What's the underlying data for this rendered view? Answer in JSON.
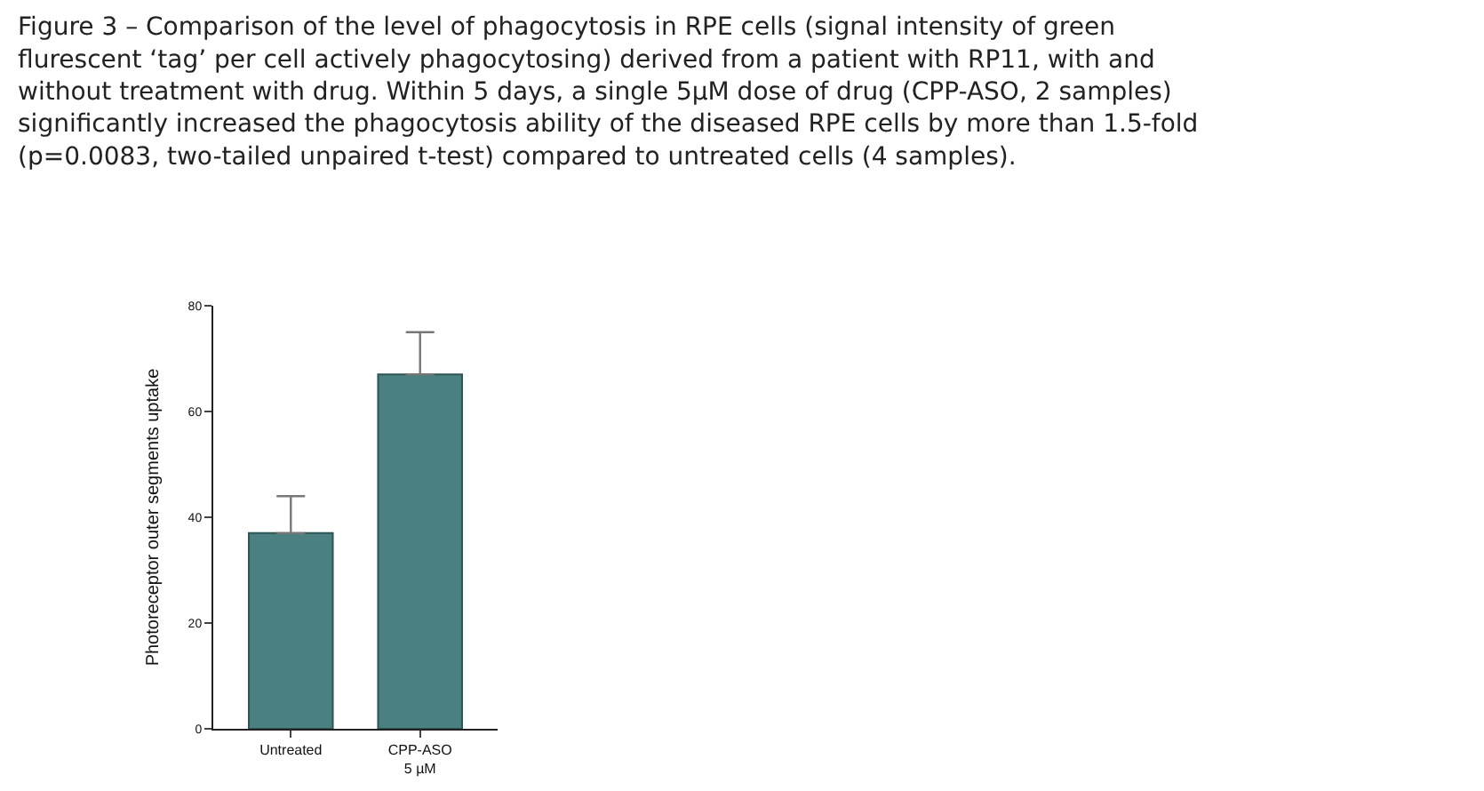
{
  "chart_data": {
    "type": "bar",
    "title": "Figure 3 – Comparison of the level of phagocytosis in RPE cells (signal intensity of green flurescent ‘tag’ per cell actively phagocytosing) derived from a patient with RP11, with and without treatment with drug. Within 5 days, a single 5μM dose of drug (CPP-ASO, 2 samples) significantly increased the phagocytosis ability of the diseased RPE cells by more than 1.5-fold (p=0.0083, two-tailed unpaired t-test) compared to untreated cells (4 samples).",
    "ylabel": "Photoreceptor outer segments uptake",
    "categories": [
      "Untreated",
      "CPP-ASO\n5 µM"
    ],
    "values": [
      37,
      67
    ],
    "errors": [
      [
        37,
        44
      ],
      [
        67,
        75
      ]
    ],
    "color": "#4b8080",
    "ylim": [
      0,
      80
    ],
    "yticks": [
      0,
      20,
      40,
      60,
      80
    ],
    "grid": false
  }
}
